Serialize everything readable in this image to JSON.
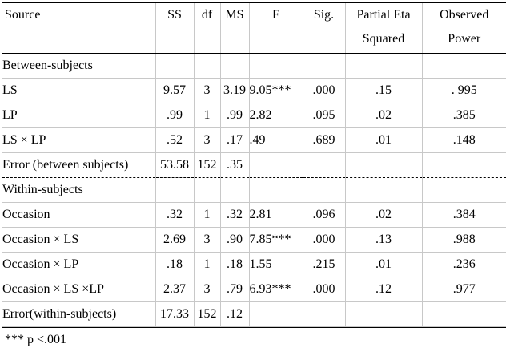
{
  "table": {
    "headers": {
      "source": "Source",
      "ss": "SS",
      "df": "df",
      "ms": "MS",
      "f": "F",
      "sig": "Sig.",
      "partial_eta_line1": "Partial Eta",
      "partial_eta_line2": "Squared",
      "observed_power_line1": "Observed",
      "observed_power_line2": "Power"
    },
    "rows": [
      {
        "source": "Between-subjects",
        "ss": "",
        "df": "",
        "ms": "",
        "f": "",
        "sig": "",
        "eta": "",
        "power": ""
      },
      {
        "source": "LS",
        "ss": "9.57",
        "df": "3",
        "ms": "3.19",
        "f": "9.05***",
        "sig": ".000",
        "eta": ".15",
        "power": ". 995"
      },
      {
        "source": "LP",
        "ss": ".99",
        "df": "1",
        "ms": ".99",
        "f": "2.82",
        "sig": ".095",
        "eta": ".02",
        "power": ".385"
      },
      {
        "source": "LS × LP",
        "ss": ".52",
        "df": "3",
        "ms": ".17",
        "f": " .49",
        "sig": ".689",
        "eta": ".01",
        "power": ".148"
      },
      {
        "source": "Error (between subjects)",
        "ss": "53.58",
        "df": "152",
        "ms": ".35",
        "f": "",
        "sig": "",
        "eta": "",
        "power": ""
      },
      {
        "source": "Within-subjects",
        "ss": "",
        "df": "",
        "ms": "",
        "f": "",
        "sig": "",
        "eta": "",
        "power": ""
      },
      {
        "source": "Occasion",
        "ss": ".32",
        "df": "1",
        "ms": ".32",
        "f": "2.81",
        "sig": ".096",
        "eta": ".02",
        "power": ".384"
      },
      {
        "source": "Occasion × LS",
        "ss": "2.69",
        "df": "3",
        "ms": ".90",
        "f": "7.85***",
        "sig": ".000",
        "eta": ".13",
        "power": ".988"
      },
      {
        "source": "Occasion × LP",
        "ss": ".18",
        "df": "1",
        "ms": ".18",
        "f": "1.55",
        "sig": ".215",
        "eta": ".01",
        "power": ".236"
      },
      {
        "source": "Occasion × LS ×LP",
        "ss": "2.37",
        "df": "3",
        "ms": ".79",
        "f": "6.93***",
        "sig": ".000",
        "eta": ".12",
        "power": ".977"
      },
      {
        "source": "Error(within-subjects)",
        "ss": "17.33",
        "df": "152",
        "ms": ".12",
        "f": "",
        "sig": "",
        "eta": "",
        "power": ""
      }
    ]
  },
  "footnote": "*** p <.001"
}
